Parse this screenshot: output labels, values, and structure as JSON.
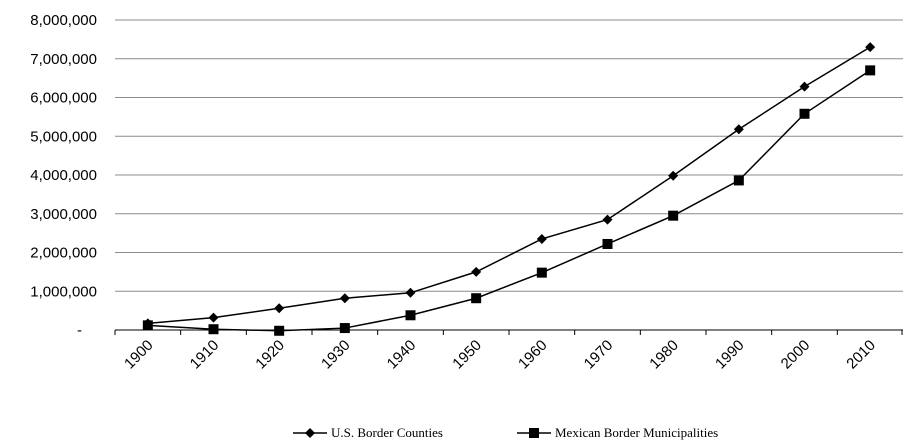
{
  "chart_data": {
    "type": "line",
    "title": "",
    "xlabel": "",
    "ylabel": "",
    "categories": [
      "1900",
      "1910",
      "1920",
      "1930",
      "1940",
      "1950",
      "1960",
      "1970",
      "1980",
      "1990",
      "2000",
      "2010"
    ],
    "ylim": [
      0,
      8000000
    ],
    "yticks": [
      {
        "value": 0,
        "label": "-"
      },
      {
        "value": 1000000,
        "label": "1,000,000"
      },
      {
        "value": 2000000,
        "label": "2,000,000"
      },
      {
        "value": 3000000,
        "label": "3,000,000"
      },
      {
        "value": 4000000,
        "label": "4,000,000"
      },
      {
        "value": 5000000,
        "label": "5,000,000"
      },
      {
        "value": 6000000,
        "label": "6,000,000"
      },
      {
        "value": 7000000,
        "label": "7,000,000"
      },
      {
        "value": 8000000,
        "label": "8,000,000"
      }
    ],
    "grid": "horizontal",
    "legend_position": "bottom",
    "series": [
      {
        "name": "U.S. Border Counties",
        "marker": "diamond",
        "color": "#000000",
        "values": [
          170000,
          320000,
          560000,
          820000,
          960000,
          1500000,
          2350000,
          2850000,
          3980000,
          5180000,
          6280000,
          7300000
        ]
      },
      {
        "name": "Mexican Border Municipalities",
        "marker": "square",
        "color": "#000000",
        "values": [
          120000,
          20000,
          -20000,
          50000,
          380000,
          820000,
          1480000,
          2220000,
          2950000,
          3860000,
          5580000,
          6700000
        ]
      }
    ]
  }
}
